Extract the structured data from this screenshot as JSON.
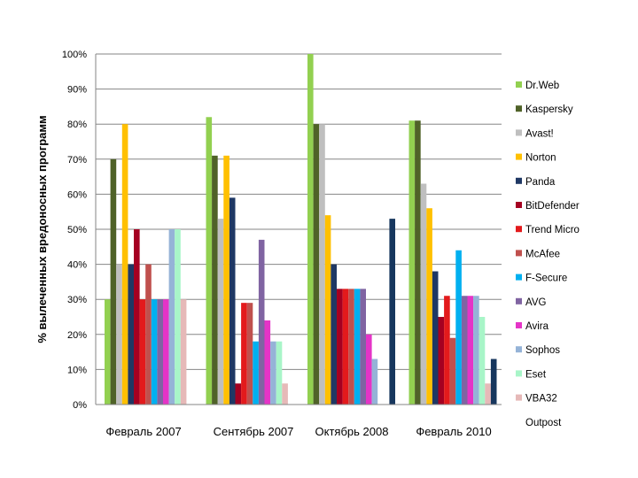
{
  "chart_data": {
    "type": "bar",
    "title": "",
    "xlabel": "",
    "ylabel": "% вылеченных вредоносных программ",
    "ylim": [
      0,
      100
    ],
    "yticks": [
      "0%",
      "10%",
      "20%",
      "30%",
      "40%",
      "50%",
      "60%",
      "70%",
      "80%",
      "90%",
      "100%"
    ],
    "grid": true,
    "legend_position": "right",
    "categories": [
      "Февраль 2007",
      "Сентябрь 2007",
      "Октябрь 2008",
      "Февраль 2010"
    ],
    "series": [
      {
        "name": "Dr.Web",
        "color": "#92d050",
        "values": [
          30,
          82,
          100,
          81
        ]
      },
      {
        "name": "Kaspersky",
        "color": "#4f6228",
        "values": [
          70,
          71,
          80,
          81
        ]
      },
      {
        "name": "Avast!",
        "color": "#bfbfbf",
        "values": [
          40,
          53,
          80,
          63
        ]
      },
      {
        "name": "Norton",
        "color": "#ffc000",
        "values": [
          80,
          71,
          54,
          56
        ]
      },
      {
        "name": "Panda",
        "color": "#1f3864",
        "values": [
          40,
          59,
          40,
          38
        ]
      },
      {
        "name": "BitDefender",
        "color": "#a50021",
        "values": [
          50,
          6,
          33,
          25
        ]
      },
      {
        "name": "Trend Micro",
        "color": "#e31a1c",
        "values": [
          30,
          29,
          33,
          31
        ]
      },
      {
        "name": "McAfee",
        "color": "#c0504d",
        "values": [
          40,
          29,
          33,
          19
        ]
      },
      {
        "name": "F-Secure",
        "color": "#00b0f0",
        "values": [
          30,
          18,
          33,
          44
        ]
      },
      {
        "name": "AVG",
        "color": "#8064a2",
        "values": [
          30,
          47,
          33,
          31
        ]
      },
      {
        "name": "Avira",
        "color": "#e534c7",
        "values": [
          30,
          24,
          20,
          31
        ]
      },
      {
        "name": "Sophos",
        "color": "#95b3d7",
        "values": [
          50,
          18,
          13,
          31
        ]
      },
      {
        "name": "Eset",
        "color": "#a8f5c8",
        "values": [
          50,
          18,
          0,
          25
        ]
      },
      {
        "name": "VBA32",
        "color": "#e6b9b8",
        "values": [
          30,
          6,
          0,
          6
        ]
      },
      {
        "name": "Outpost",
        "color": "#17375e",
        "values": [
          0,
          0,
          53,
          13
        ]
      }
    ]
  }
}
